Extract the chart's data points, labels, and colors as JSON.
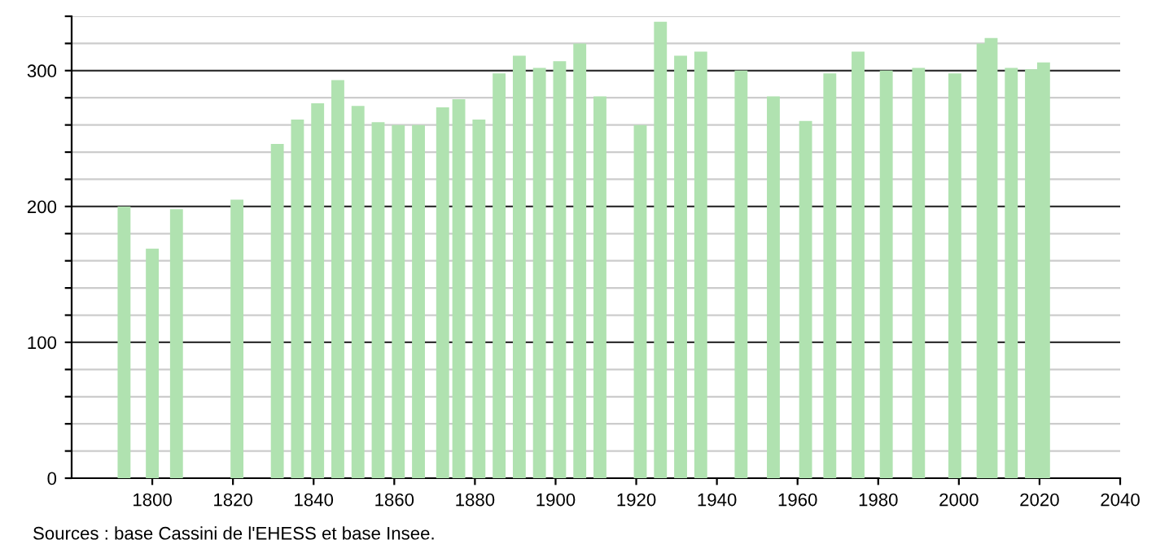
{
  "chart_data": {
    "type": "bar",
    "x": [
      1793,
      1800,
      1806,
      1821,
      1831,
      1836,
      1841,
      1846,
      1851,
      1856,
      1861,
      1866,
      1872,
      1876,
      1881,
      1886,
      1891,
      1896,
      1901,
      1906,
      1911,
      1921,
      1926,
      1931,
      1936,
      1946,
      1954,
      1962,
      1968,
      1975,
      1982,
      1990,
      1999,
      2006,
      2008,
      2013,
      2018,
      2021
    ],
    "values": [
      200,
      169,
      198,
      205,
      246,
      264,
      276,
      293,
      274,
      262,
      260,
      260,
      273,
      279,
      264,
      298,
      311,
      302,
      307,
      320,
      281,
      260,
      336,
      311,
      314,
      300,
      281,
      263,
      298,
      314,
      300,
      302,
      298,
      320,
      324,
      302,
      301,
      306
    ],
    "color": "#b0e2b0",
    "xlim": [
      1780,
      2040
    ],
    "xticks": [
      1800,
      1820,
      1840,
      1860,
      1880,
      1900,
      1920,
      1940,
      1960,
      1980,
      2000,
      2020,
      2040
    ],
    "ylim": [
      0,
      340
    ],
    "yticks": [
      0,
      {
        "value": 20,
        "label": null
      },
      {
        "value": 40,
        "label": null
      },
      {
        "value": 60,
        "label": null
      },
      {
        "value": 80,
        "label": null
      },
      100,
      {
        "value": 120,
        "label": null
      },
      {
        "value": 140,
        "label": null
      },
      {
        "value": 160,
        "label": null
      },
      {
        "value": 180,
        "label": null
      },
      200,
      {
        "value": 220,
        "label": null
      },
      {
        "value": 240,
        "label": null
      },
      {
        "value": 260,
        "label": null
      },
      {
        "value": 280,
        "label": null
      },
      300,
      {
        "value": 320,
        "label": null
      },
      {
        "value": 340,
        "label": null
      }
    ],
    "grid": "y",
    "annotations": [
      "Sources : base Cassini de l'EHESS et base Insee."
    ]
  }
}
